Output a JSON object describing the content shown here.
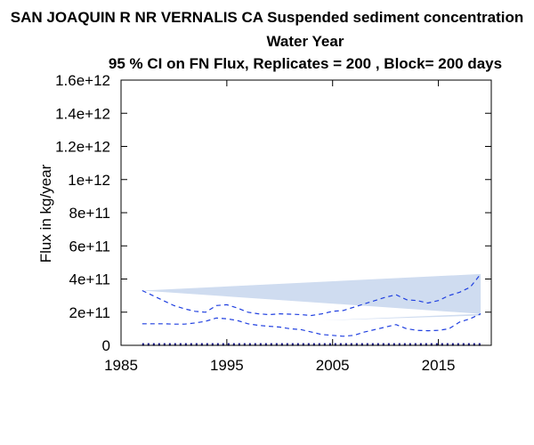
{
  "chart_data": {
    "type": "line",
    "title": "SAN JOAQUIN R NR VERNALIS CA   Suspended sediment concentration",
    "subtitle": "Water Year",
    "subtitle2": "95 % CI on FN Flux, Replicates = 200 , Block= 200 days",
    "xlabel": "",
    "ylabel": "Flux in kg/year",
    "xlim": [
      1985,
      2020
    ],
    "ylim": [
      0,
      1600000000000
    ],
    "x_ticks": [
      1985,
      1995,
      2005,
      2015
    ],
    "x_tick_labels": [
      "1985",
      "1995",
      "2005",
      "2015"
    ],
    "y_ticks": [
      0,
      200000000000,
      400000000000,
      600000000000,
      800000000000,
      1000000000000,
      1200000000000,
      1400000000000,
      1600000000000
    ],
    "y_tick_labels": [
      "0",
      "2e+11",
      "4e+11",
      "6e+11",
      "8e+11",
      "1e+12",
      "1.2e+12",
      "1.4e+12",
      "1.6e+12"
    ],
    "grid": false,
    "colors": {
      "ci_fill": "#cfdcf0",
      "ci_line": "#1f3fe0",
      "flux_line": "#000080",
      "axis": "#000000"
    },
    "bands": [
      {
        "x": [
          1987,
          2019
        ],
        "upper": [
          330000000000,
          430000000000
        ],
        "lower": [
          330000000000,
          430000000000
        ],
        "note_draw": "upper_band"
      }
    ],
    "upper_band_polygon": {
      "x": [
        1987,
        2019,
        2019,
        1987
      ],
      "y": [
        330000000000,
        430000000000,
        190000000000,
        330000000000
      ]
    },
    "lower_band_polygon": {
      "x": [
        2004,
        2019,
        2019,
        2004
      ],
      "y": [
        150000000000,
        180000000000,
        190000000000,
        150000000000
      ]
    },
    "series": [
      {
        "style": "dashed",
        "x": [
          1987,
          1988,
          1989,
          1990,
          1991,
          1992,
          1993,
          1994,
          1995,
          1996,
          1997,
          1998,
          1999,
          2000,
          2001,
          2002,
          2003,
          2004,
          2005,
          2006,
          2007,
          2008,
          2009,
          2010,
          2011,
          2012,
          2013,
          2014,
          2015,
          2016,
          2017,
          2018,
          2019
        ],
        "values": [
          330000000000,
          300000000000,
          270000000000,
          240000000000,
          220000000000,
          205000000000,
          200000000000,
          240000000000,
          245000000000,
          225000000000,
          200000000000,
          190000000000,
          185000000000,
          190000000000,
          188000000000,
          185000000000,
          180000000000,
          190000000000,
          205000000000,
          210000000000,
          230000000000,
          250000000000,
          270000000000,
          290000000000,
          305000000000,
          275000000000,
          270000000000,
          255000000000,
          270000000000,
          300000000000,
          320000000000,
          350000000000,
          430000000000
        ]
      },
      {
        "style": "dashed",
        "x": [
          1987,
          1988,
          1989,
          1990,
          1991,
          1992,
          1993,
          1994,
          1995,
          1996,
          1997,
          1998,
          1999,
          2000,
          2001,
          2002,
          2003,
          2004,
          2005,
          2006,
          2007,
          2008,
          2009,
          2010,
          2011,
          2012,
          2013,
          2014,
          2015,
          2016,
          2017,
          2018,
          2019
        ],
        "values": [
          130000000000,
          130000000000,
          130000000000,
          128000000000,
          128000000000,
          135000000000,
          145000000000,
          165000000000,
          160000000000,
          150000000000,
          130000000000,
          120000000000,
          115000000000,
          110000000000,
          100000000000,
          95000000000,
          80000000000,
          65000000000,
          60000000000,
          55000000000,
          60000000000,
          80000000000,
          95000000000,
          110000000000,
          125000000000,
          100000000000,
          90000000000,
          88000000000,
          90000000000,
          100000000000,
          140000000000,
          160000000000,
          190000000000
        ]
      },
      {
        "style": "dotted",
        "x": [
          1987,
          1990,
          1995,
          2000,
          2005,
          2010,
          2015,
          2019
        ],
        "values": [
          5000000000,
          5000000000,
          5000000000,
          5000000000,
          5000000000,
          5000000000,
          5000000000,
          5000000000
        ]
      }
    ]
  }
}
